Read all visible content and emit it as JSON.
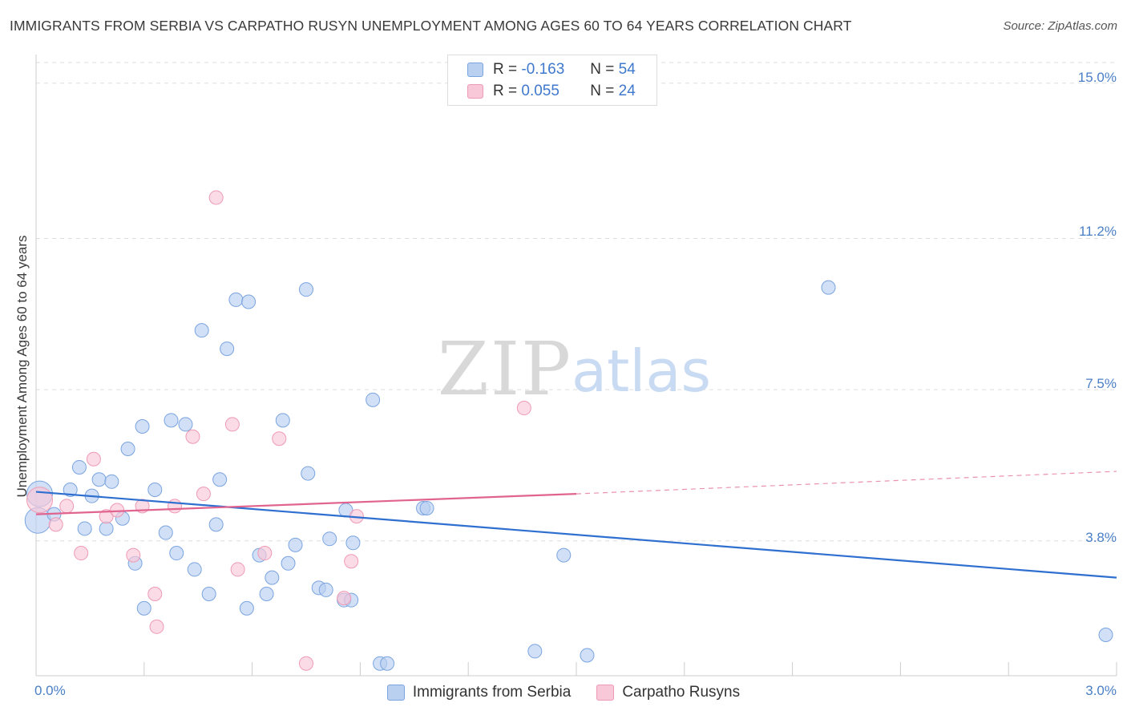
{
  "chart_data": {
    "type": "scatter",
    "title": "IMMIGRANTS FROM SERBIA VS CARPATHO RUSYN UNEMPLOYMENT AMONG AGES 60 TO 64 YEARS CORRELATION CHART",
    "source": "Source: ZipAtlas.com",
    "xlabel": "",
    "ylabel": "Unemployment Among Ages 60 to 64 years",
    "xlim": [
      0,
      3.0
    ],
    "ylim": [
      0.5,
      15.7
    ],
    "x_tick_labels": {
      "left": "0.0%",
      "right": "3.0%"
    },
    "y_ticks": [
      {
        "value": 3.8,
        "label": "3.8%"
      },
      {
        "value": 7.5,
        "label": "7.5%"
      },
      {
        "value": 11.2,
        "label": "11.2%"
      },
      {
        "value": 15.0,
        "label": "15.0%"
      }
    ],
    "watermark": {
      "zip": "ZIP",
      "atlas": "atlas"
    },
    "legend": {
      "rows": [
        {
          "r_label": "R =",
          "r_value": "-0.163",
          "n_label": "N =",
          "n_value": "54"
        },
        {
          "r_label": "R =",
          "r_value": "0.055",
          "n_label": "N =",
          "n_value": "24"
        }
      ]
    },
    "series": [
      {
        "name": "Immigrants from Serbia",
        "color": "#7aa4e0",
        "fill": "#b9d0f1",
        "trend": {
          "x0": 0.0,
          "y0": 5.0,
          "x1": 3.0,
          "y1": 2.9,
          "color": "#2f6fd0"
        },
        "points": [
          {
            "x": 0.01,
            "y": 4.95,
            "big": true
          },
          {
            "x": 0.005,
            "y": 4.3,
            "big": true
          },
          {
            "x": 0.05,
            "y": 4.45
          },
          {
            "x": 0.095,
            "y": 5.05
          },
          {
            "x": 0.12,
            "y": 5.6
          },
          {
            "x": 0.135,
            "y": 4.1
          },
          {
            "x": 0.155,
            "y": 4.9
          },
          {
            "x": 0.175,
            "y": 5.3
          },
          {
            "x": 0.195,
            "y": 4.1
          },
          {
            "x": 0.21,
            "y": 5.25
          },
          {
            "x": 0.24,
            "y": 4.35
          },
          {
            "x": 0.255,
            "y": 6.05
          },
          {
            "x": 0.275,
            "y": 3.25
          },
          {
            "x": 0.295,
            "y": 6.6
          },
          {
            "x": 0.3,
            "y": 2.15
          },
          {
            "x": 0.33,
            "y": 5.05
          },
          {
            "x": 0.36,
            "y": 4.0
          },
          {
            "x": 0.375,
            "y": 6.75
          },
          {
            "x": 0.39,
            "y": 3.5
          },
          {
            "x": 0.415,
            "y": 6.65
          },
          {
            "x": 0.44,
            "y": 3.1
          },
          {
            "x": 0.46,
            "y": 8.95
          },
          {
            "x": 0.48,
            "y": 2.5
          },
          {
            "x": 0.5,
            "y": 4.2
          },
          {
            "x": 0.51,
            "y": 5.3
          },
          {
            "x": 0.53,
            "y": 8.5
          },
          {
            "x": 0.555,
            "y": 9.7
          },
          {
            "x": 0.585,
            "y": 2.15
          },
          {
            "x": 0.59,
            "y": 9.65
          },
          {
            "x": 0.62,
            "y": 3.45
          },
          {
            "x": 0.64,
            "y": 2.5
          },
          {
            "x": 0.655,
            "y": 2.9
          },
          {
            "x": 0.685,
            "y": 6.75
          },
          {
            "x": 0.7,
            "y": 3.25
          },
          {
            "x": 0.72,
            "y": 3.7
          },
          {
            "x": 0.75,
            "y": 9.95
          },
          {
            "x": 0.755,
            "y": 5.45
          },
          {
            "x": 0.785,
            "y": 2.65
          },
          {
            "x": 0.805,
            "y": 2.6
          },
          {
            "x": 0.815,
            "y": 3.85
          },
          {
            "x": 0.855,
            "y": 2.35
          },
          {
            "x": 0.86,
            "y": 4.55
          },
          {
            "x": 0.88,
            "y": 3.75
          },
          {
            "x": 0.875,
            "y": 2.35
          },
          {
            "x": 0.935,
            "y": 7.25
          },
          {
            "x": 0.955,
            "y": 0.8
          },
          {
            "x": 0.975,
            "y": 0.8
          },
          {
            "x": 1.075,
            "y": 4.6
          },
          {
            "x": 1.085,
            "y": 4.6
          },
          {
            "x": 1.385,
            "y": 1.1
          },
          {
            "x": 1.465,
            "y": 3.45
          },
          {
            "x": 1.53,
            "y": 1.0
          },
          {
            "x": 2.2,
            "y": 10.0
          },
          {
            "x": 2.97,
            "y": 1.5
          }
        ]
      },
      {
        "name": "Carpatho Rusyns",
        "color": "#ef9ab4",
        "fill": "#f9c8d8",
        "trend": {
          "x0": 0.0,
          "y0": 4.45,
          "x1": 1.5,
          "y1": 4.95,
          "dash_x1": 3.0,
          "dash_y1": 5.5,
          "color": "#e0648f"
        },
        "points": [
          {
            "x": 0.01,
            "y": 4.8,
            "big": true
          },
          {
            "x": 0.055,
            "y": 4.2
          },
          {
            "x": 0.085,
            "y": 4.65
          },
          {
            "x": 0.125,
            "y": 3.5
          },
          {
            "x": 0.16,
            "y": 5.8
          },
          {
            "x": 0.195,
            "y": 4.4
          },
          {
            "x": 0.225,
            "y": 4.55
          },
          {
            "x": 0.27,
            "y": 3.45
          },
          {
            "x": 0.295,
            "y": 4.65
          },
          {
            "x": 0.33,
            "y": 2.5
          },
          {
            "x": 0.335,
            "y": 1.7
          },
          {
            "x": 0.385,
            "y": 4.65
          },
          {
            "x": 0.435,
            "y": 6.35
          },
          {
            "x": 0.465,
            "y": 4.95
          },
          {
            "x": 0.5,
            "y": 12.2
          },
          {
            "x": 0.545,
            "y": 6.65
          },
          {
            "x": 0.56,
            "y": 3.1
          },
          {
            "x": 0.635,
            "y": 3.5
          },
          {
            "x": 0.675,
            "y": 6.3
          },
          {
            "x": 0.75,
            "y": 0.8
          },
          {
            "x": 0.855,
            "y": 2.4
          },
          {
            "x": 0.875,
            "y": 3.3
          },
          {
            "x": 0.89,
            "y": 4.4
          },
          {
            "x": 1.355,
            "y": 7.05
          }
        ]
      }
    ]
  }
}
